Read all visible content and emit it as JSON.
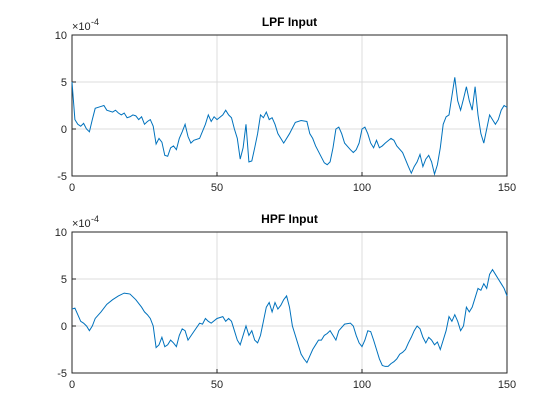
{
  "chart_data": [
    {
      "type": "line",
      "title": "LPF Input",
      "y_multiplier": "×10",
      "y_exponent": "-4",
      "x": [
        0,
        1,
        2,
        3,
        4,
        5,
        6,
        7,
        8,
        10,
        11,
        12,
        14,
        15,
        16,
        17,
        18,
        19,
        20,
        21,
        22,
        23,
        24,
        25,
        26,
        27,
        28,
        29,
        30,
        31,
        32,
        33,
        34,
        35,
        36,
        37,
        38,
        39,
        40,
        41,
        42,
        44,
        46,
        47,
        48,
        49,
        50,
        52,
        53,
        54,
        55,
        56,
        57,
        58,
        59,
        60,
        61,
        62,
        63,
        64,
        65,
        66,
        67,
        68,
        69,
        70,
        71,
        72,
        73,
        75,
        77,
        79,
        81,
        82,
        83,
        84,
        86,
        87,
        88,
        89,
        90,
        91,
        92,
        93,
        94,
        96,
        97,
        98,
        99,
        100,
        101,
        102,
        103,
        104,
        105,
        106,
        107,
        108,
        110,
        111,
        112,
        114,
        116,
        117,
        118,
        119,
        120,
        121,
        122,
        123,
        124,
        125,
        126,
        127,
        128,
        129,
        130,
        131,
        132,
        133,
        134,
        135,
        136,
        137,
        138,
        139,
        140,
        141,
        142,
        143,
        144,
        145,
        146,
        147,
        148,
        149,
        150
      ],
      "series": [
        {
          "color": "#0072bd",
          "values": [
            5,
            1,
            0.5,
            0.3,
            0.6,
            0,
            -0.3,
            1,
            2.2,
            2.4,
            2.5,
            2,
            1.8,
            2,
            1.7,
            1.5,
            1.7,
            1.2,
            1.3,
            1.5,
            1.4,
            1,
            1.3,
            0.5,
            0.8,
            1,
            0.3,
            -1.6,
            -1,
            -1.4,
            -2.8,
            -2.9,
            -2,
            -1.8,
            -2.2,
            -1,
            -0.3,
            0.5,
            -0.8,
            -1.5,
            -1.2,
            -1,
            0.5,
            1.5,
            0.8,
            1.3,
            1,
            1.5,
            2,
            1.5,
            1.2,
            0,
            -1,
            -3.2,
            -2,
            0.5,
            -3.5,
            -3.4,
            -2,
            -0.5,
            1.5,
            1.2,
            1.8,
            1,
            1.2,
            0.5,
            -0.5,
            -1,
            -1.5,
            -0.5,
            0.7,
            0.9,
            0.8,
            -0.5,
            -1,
            -1.8,
            -3,
            -3.6,
            -3.8,
            -3.5,
            -2,
            0,
            0.2,
            -0.5,
            -1.5,
            -2.2,
            -2.5,
            -2.2,
            -1.5,
            0,
            0.2,
            -0.5,
            -1.5,
            -2,
            -1.2,
            -2,
            -1.8,
            -1.5,
            -1,
            -1.2,
            -1.8,
            -2.5,
            -4,
            -4.7,
            -4,
            -3.5,
            -2.7,
            -4,
            -3.2,
            -2.8,
            -3.5,
            -4.8,
            -3.8,
            -2,
            0.5,
            1.3,
            1.5,
            3.5,
            5.5,
            3,
            2,
            3.2,
            4.5,
            3,
            2,
            4.5,
            1.5,
            -0.5,
            -1.5,
            0,
            1.5,
            1,
            0.5,
            1,
            2,
            2.5,
            2.3
          ]
        }
      ],
      "xlim": [
        0,
        150
      ],
      "xticks": [
        0,
        50,
        100,
        150
      ],
      "ylim": [
        -5,
        10
      ],
      "yticks": [
        -5,
        0,
        5,
        10
      ],
      "grid": true
    },
    {
      "type": "line",
      "title": "HPF Input",
      "y_multiplier": "×10",
      "y_exponent": "-4",
      "x": [
        0,
        1,
        2,
        3,
        4,
        5,
        6,
        7,
        8,
        10,
        12,
        14,
        16,
        18,
        20,
        22,
        24,
        25,
        26,
        27,
        28,
        29,
        30,
        31,
        32,
        33,
        34,
        35,
        36,
        37,
        38,
        39,
        40,
        42,
        44,
        45,
        46,
        47,
        48,
        50,
        52,
        53,
        54,
        55,
        56,
        57,
        58,
        59,
        60,
        61,
        62,
        63,
        64,
        65,
        66,
        67,
        68,
        69,
        70,
        71,
        72,
        73,
        74,
        75,
        76,
        77,
        78,
        79,
        80,
        81,
        82,
        83,
        84,
        85,
        86,
        87,
        88,
        89,
        90,
        91,
        92,
        94,
        96,
        97,
        98,
        99,
        100,
        101,
        102,
        103,
        104,
        105,
        106,
        107,
        108,
        109,
        110,
        111,
        112,
        113,
        114,
        115,
        116,
        117,
        118,
        119,
        120,
        121,
        122,
        123,
        124,
        125,
        126,
        127,
        128,
        129,
        130,
        131,
        132,
        133,
        134,
        135,
        136,
        137,
        138,
        139,
        140,
        141,
        142,
        143,
        144,
        145,
        146,
        147,
        148,
        149,
        150
      ],
      "series": [
        {
          "color": "#0072bd",
          "values": [
            1.8,
            1.9,
            1.2,
            0.5,
            0.3,
            0,
            -0.5,
            0,
            0.8,
            1.5,
            2.3,
            2.8,
            3.2,
            3.5,
            3.4,
            2.8,
            2,
            1.5,
            1.2,
            0.8,
            0,
            -2.3,
            -2,
            -1.2,
            -2.2,
            -2,
            -1.5,
            -1.8,
            -2.2,
            -1,
            -0.3,
            -0.5,
            -1.5,
            -0.6,
            0.3,
            0.2,
            0.8,
            0.5,
            0.3,
            0.8,
            1,
            0.5,
            0.8,
            0.5,
            -0.5,
            -1.5,
            -2,
            -1,
            0,
            -1,
            -0.5,
            -1.5,
            -1.8,
            -1,
            0.5,
            2,
            2.5,
            1.5,
            2.5,
            1.8,
            2.2,
            2.8,
            3.2,
            2,
            0,
            -1,
            -2,
            -3,
            -3.5,
            -3.9,
            -3.2,
            -2.5,
            -2,
            -1.5,
            -1.5,
            -1,
            -0.8,
            -0.5,
            -1,
            -1.5,
            -0.5,
            0.2,
            0.3,
            0,
            -1,
            -1.8,
            -2.2,
            -1.5,
            -0.5,
            -0.6,
            -1.5,
            -2.5,
            -3.5,
            -4.2,
            -4.3,
            -4.3,
            -4,
            -3.8,
            -3.5,
            -3,
            -2.8,
            -2.5,
            -1.8,
            -1.2,
            -0.5,
            0,
            -0.3,
            -1.2,
            -1.8,
            -1.2,
            -1.5,
            -2,
            -1.7,
            -2.5,
            -1.5,
            -0.5,
            1,
            0.5,
            1.2,
            0.5,
            -0.5,
            0,
            2,
            1.5,
            2,
            3,
            4,
            3.8,
            4.5,
            4,
            5.5,
            6,
            5.5,
            5,
            4.5,
            4,
            3.2
          ]
        }
      ],
      "xlim": [
        0,
        150
      ],
      "xticks": [
        0,
        50,
        100,
        150
      ],
      "ylim": [
        -5,
        10
      ],
      "yticks": [
        -5,
        0,
        5,
        10
      ],
      "grid": true
    }
  ]
}
